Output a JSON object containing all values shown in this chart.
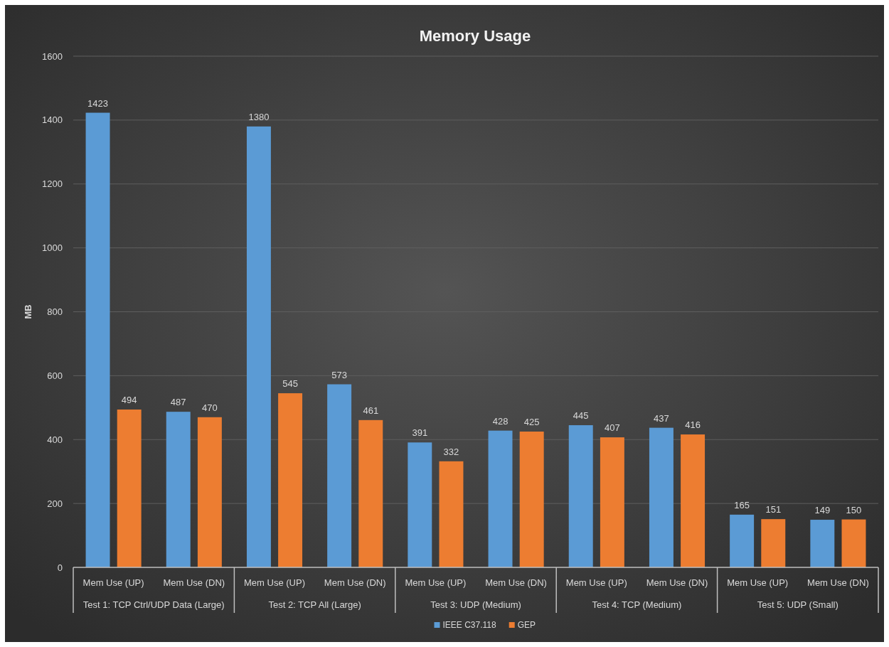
{
  "chart_data": {
    "type": "bar",
    "title": "Memory Usage",
    "ylabel": "MB",
    "categories": [
      "Mem Use (UP)",
      "Mem Use (DN)",
      "Mem Use (UP)",
      "Mem Use (DN)",
      "Mem Use (UP)",
      "Mem Use (DN)",
      "Mem Use (UP)",
      "Mem Use (DN)",
      "Mem Use (UP)",
      "Mem Use (DN)"
    ],
    "series": [
      {
        "name": "IEEE C37.118",
        "color": "#5b9bd5",
        "values": [
          1423,
          487,
          1380,
          573,
          391,
          428,
          445,
          437,
          165,
          149
        ]
      },
      {
        "name": "GEP",
        "color": "#ed7d31",
        "values": [
          494,
          470,
          545,
          461,
          332,
          425,
          407,
          416,
          151,
          150
        ]
      }
    ],
    "annotations": [
      "Test 1: TCP Ctrl/UDP Data (Large)",
      "Test 2: TCP All (Large)",
      "Test 3: UDP (Medium)",
      "Test 4: TCP (Medium)",
      "Test 5: UDP (Small)"
    ],
    "ylim": [
      0,
      1600
    ],
    "yticks": [
      0,
      200,
      400,
      600,
      800,
      1000,
      1200,
      1400,
      1600
    ],
    "grid": "y",
    "legend": "bottom",
    "data_labels": true
  }
}
